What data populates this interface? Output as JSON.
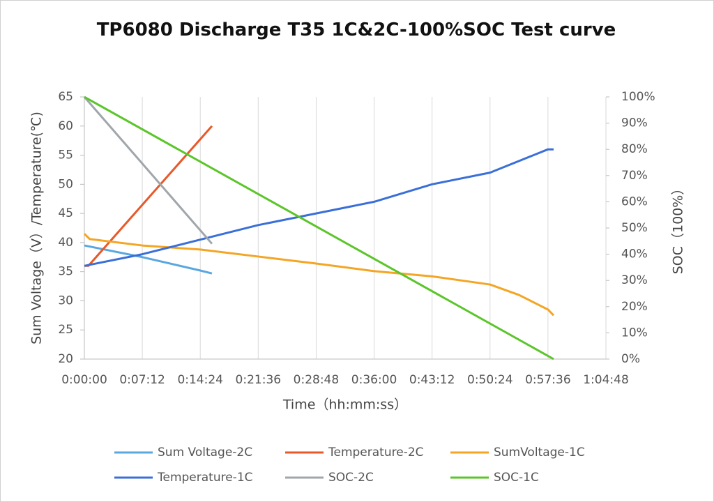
{
  "chart_data": {
    "type": "line",
    "title": "TP6080  Discharge T35 1C&2C-100%SOC  Test curve",
    "xlabel": "Time（hh:mm:ss）",
    "ylabel": "Sum Voltage（V）/Temperature(℃)",
    "y2label": "SOC（100%）",
    "xlim": [
      0,
      3888
    ],
    "xticks": [
      {
        "value": 0,
        "label": "0:00:00"
      },
      {
        "value": 432,
        "label": "0:07:12"
      },
      {
        "value": 864,
        "label": "0:14:24"
      },
      {
        "value": 1296,
        "label": "0:21:36"
      },
      {
        "value": 1728,
        "label": "0:28:48"
      },
      {
        "value": 2160,
        "label": "0:36:00"
      },
      {
        "value": 2592,
        "label": "0:43:12"
      },
      {
        "value": 3024,
        "label": "0:50:24"
      },
      {
        "value": 3456,
        "label": "0:57:36"
      },
      {
        "value": 3888,
        "label": "1:04:48"
      }
    ],
    "ylim": [
      20,
      65
    ],
    "yticks": [
      20,
      25,
      30,
      35,
      40,
      45,
      50,
      55,
      60,
      65
    ],
    "y2lim": [
      0,
      100
    ],
    "y2ticks": [
      {
        "value": 0,
        "label": "0%"
      },
      {
        "value": 10,
        "label": "10%"
      },
      {
        "value": 20,
        "label": "20%"
      },
      {
        "value": 30,
        "label": "30%"
      },
      {
        "value": 40,
        "label": "40%"
      },
      {
        "value": 50,
        "label": "50%"
      },
      {
        "value": 60,
        "label": "60%"
      },
      {
        "value": 70,
        "label": "70%"
      },
      {
        "value": 80,
        "label": "80%"
      },
      {
        "value": 90,
        "label": "90%"
      },
      {
        "value": 100,
        "label": "100%"
      }
    ],
    "grid": "x",
    "legend": "bottom",
    "series": [
      {
        "name": "Sum Voltage-2C",
        "color": "#5aa7e0",
        "x": [
          0,
          432,
          864,
          951
        ],
        "values": [
          39.5,
          37.5,
          35.2,
          34.7
        ]
      },
      {
        "name": "Temperature-2C",
        "color": "#e8582a",
        "x": [
          0,
          30,
          951
        ],
        "values": [
          36,
          36,
          60
        ]
      },
      {
        "name": "SumVoltage-1C",
        "color": "#f4a523",
        "x": [
          0,
          40,
          432,
          864,
          1296,
          1728,
          2160,
          2592,
          3024,
          3240,
          3456,
          3498
        ],
        "values": [
          41.5,
          40.6,
          39.5,
          38.8,
          37.6,
          36.4,
          35.1,
          34.2,
          32.8,
          31,
          28.5,
          27.5
        ]
      },
      {
        "name": "Temperature-1C",
        "color": "#3a6fd8",
        "x": [
          0,
          432,
          864,
          1296,
          1728,
          2160,
          2592,
          3024,
          3456,
          3498
        ],
        "values": [
          36,
          38,
          40.5,
          43,
          45,
          47,
          50,
          52,
          56,
          56
        ]
      },
      {
        "name": "SOC-2C",
        "color": "#a0a6aa",
        "axis": "y2",
        "x": [
          0,
          951
        ],
        "values": [
          100,
          44
        ]
      },
      {
        "name": "SOC-1C",
        "color": "#5bc52a",
        "axis": "y2",
        "x": [
          0,
          3498
        ],
        "values": [
          100,
          0
        ]
      }
    ]
  }
}
